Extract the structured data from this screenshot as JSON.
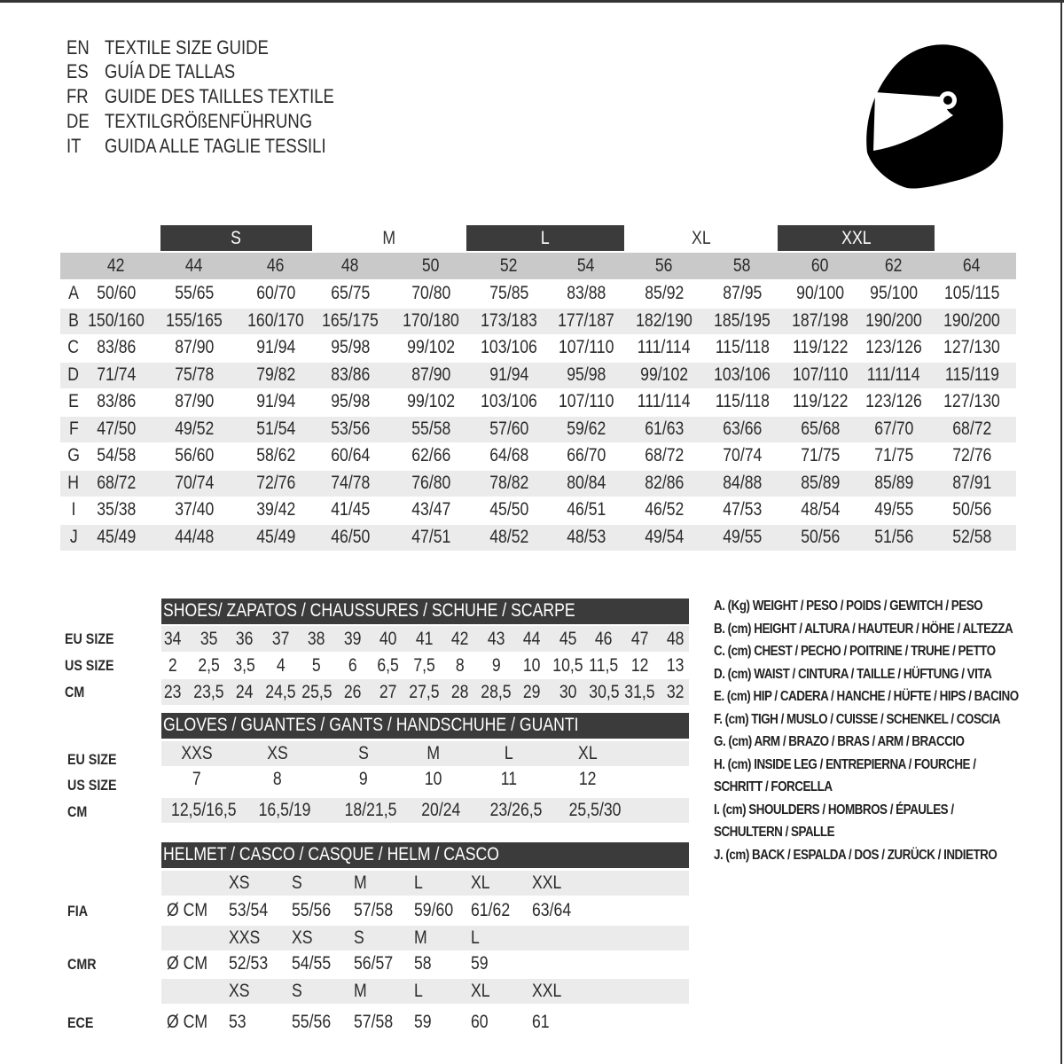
{
  "titles": [
    {
      "code": "EN",
      "text": "TEXTILE SIZE GUIDE"
    },
    {
      "code": "ES",
      "text": "GUÍA DE TALLAS"
    },
    {
      "code": "FR",
      "text": "GUIDE DES TAILLES TEXTILE"
    },
    {
      "code": "DE",
      "text": "TEXTILGRÖßENFÜHRUNG"
    },
    {
      "code": "IT",
      "text": "GUIDA ALLE TAGLIE TESSILI"
    }
  ],
  "logo_icon": "helmet-icon",
  "textile": {
    "size_groups": [
      {
        "label": "S",
        "highlighted": true
      },
      {
        "label": "M",
        "highlighted": false
      },
      {
        "label": "L",
        "highlighted": true
      },
      {
        "label": "XL",
        "highlighted": false
      },
      {
        "label": "XXL",
        "highlighted": true
      }
    ],
    "columns": [
      "42",
      "44",
      "46",
      "48",
      "50",
      "52",
      "54",
      "56",
      "58",
      "60",
      "62",
      "64"
    ],
    "rows": [
      {
        "key": "A",
        "values": [
          "50/60",
          "55/65",
          "60/70",
          "65/75",
          "70/80",
          "75/85",
          "83/88",
          "85/92",
          "87/95",
          "90/100",
          "95/100",
          "105/115"
        ]
      },
      {
        "key": "B",
        "values": [
          "150/160",
          "155/165",
          "160/170",
          "165/175",
          "170/180",
          "173/183",
          "177/187",
          "182/190",
          "185/195",
          "187/198",
          "190/200",
          "190/200"
        ]
      },
      {
        "key": "C",
        "values": [
          "83/86",
          "87/90",
          "91/94",
          "95/98",
          "99/102",
          "103/106",
          "107/110",
          "111/114",
          "115/118",
          "119/122",
          "123/126",
          "127/130"
        ]
      },
      {
        "key": "D",
        "values": [
          "71/74",
          "75/78",
          "79/82",
          "83/86",
          "87/90",
          "91/94",
          "95/98",
          "99/102",
          "103/106",
          "107/110",
          "111/114",
          "115/119"
        ]
      },
      {
        "key": "E",
        "values": [
          "83/86",
          "87/90",
          "91/94",
          "95/98",
          "99/102",
          "103/106",
          "107/110",
          "111/114",
          "115/118",
          "119/122",
          "123/126",
          "127/130"
        ]
      },
      {
        "key": "F",
        "values": [
          "47/50",
          "49/52",
          "51/54",
          "53/56",
          "55/58",
          "57/60",
          "59/62",
          "61/63",
          "63/66",
          "65/68",
          "67/70",
          "68/72"
        ]
      },
      {
        "key": "G",
        "values": [
          "54/58",
          "56/60",
          "58/62",
          "60/64",
          "62/66",
          "64/68",
          "66/70",
          "68/72",
          "70/74",
          "71/75",
          "71/75",
          "72/76"
        ]
      },
      {
        "key": "H",
        "values": [
          "68/72",
          "70/74",
          "72/76",
          "74/78",
          "76/80",
          "78/82",
          "80/84",
          "82/86",
          "84/88",
          "85/89",
          "85/89",
          "87/91"
        ]
      },
      {
        "key": "I",
        "values": [
          "35/38",
          "37/40",
          "39/42",
          "41/45",
          "43/47",
          "45/50",
          "46/51",
          "46/52",
          "47/53",
          "48/54",
          "49/55",
          "50/56"
        ]
      },
      {
        "key": "J",
        "values": [
          "45/49",
          "44/48",
          "45/49",
          "46/50",
          "47/51",
          "48/52",
          "48/53",
          "49/54",
          "49/55",
          "50/56",
          "51/56",
          "52/58"
        ]
      }
    ]
  },
  "shoes": {
    "title": "SHOES/ ZAPATOS / CHAUSSURES / SCHUHE / SCARPE",
    "rows": [
      {
        "label": "EU SIZE",
        "values": [
          "34",
          "35",
          "36",
          "37",
          "38",
          "39",
          "40",
          "41",
          "42",
          "43",
          "44",
          "45",
          "46",
          "47",
          "48"
        ]
      },
      {
        "label": "US SIZE",
        "values": [
          "2",
          "2,5",
          "3,5",
          "4",
          "5",
          "6",
          "6,5",
          "7,5",
          "8",
          "9",
          "10",
          "10,5",
          "11,5",
          "12",
          "13"
        ]
      },
      {
        "label": "CM",
        "values": [
          "23",
          "23,5",
          "24",
          "24,5",
          "25,5",
          "26",
          "27",
          "27,5",
          "28",
          "28,5",
          "29",
          "30",
          "30,5",
          "31,5",
          "32"
        ]
      }
    ]
  },
  "gloves": {
    "title": "GLOVES / GUANTES / GANTS / HANDSCHUHE / GUANTI",
    "rows": [
      {
        "label": "EU SIZE",
        "values": [
          "XXS",
          "XS",
          "S",
          "M",
          "L",
          "XL"
        ]
      },
      {
        "label": "US SIZE",
        "values": [
          "7",
          "8",
          "9",
          "10",
          "11",
          "12"
        ]
      },
      {
        "label": "CM",
        "values": [
          "12,5/16,5",
          "16,5/19",
          "18/21,5",
          "20/24",
          "23/26,5",
          "25,5/30"
        ]
      }
    ]
  },
  "helmet": {
    "title": "HELMET / CASCO / CASQUE / HELM / CASCO",
    "unit": "Ø CM",
    "standards": [
      {
        "label": "FIA",
        "sizes": [
          "XS",
          "S",
          "M",
          "L",
          "XL",
          "XXL"
        ],
        "values": [
          "53/54",
          "55/56",
          "57/58",
          "59/60",
          "61/62",
          "63/64"
        ]
      },
      {
        "label": "CMR",
        "sizes": [
          "XXS",
          "XS",
          "S",
          "M",
          "L"
        ],
        "values": [
          "52/53",
          "54/55",
          "56/57",
          "58",
          "59"
        ]
      },
      {
        "label": "ECE",
        "sizes": [
          "XS",
          "S",
          "M",
          "L",
          "XL",
          "XXL"
        ],
        "values": [
          "53",
          "55/56",
          "57/58",
          "59",
          "60",
          "61"
        ]
      }
    ]
  },
  "legend": [
    "A. (Kg) WEIGHT / PESO / POIDS / GEWITCH / PESO",
    "B. (cm) HEIGHT / ALTURA / HAUTEUR / HÖHE / ALTEZZA",
    "C. (cm) CHEST / PECHO / POITRINE / TRUHE / PETTO",
    "D. (cm) WAIST / CINTURA / TAILLE / HÜFTUNG / VITA",
    "E. (cm) HIP / CADERA / HANCHE / HÜFTE / HIPS /  BACINO",
    "F.  (cm) TIGH / MUSLO / CUISSE / SCHENKEL / COSCIA",
    "G. (cm) ARM  / BRAZO / BRAS / ARM / BRACCIO",
    "H. (cm) INSIDE LEG / ENTREPIERNA / FOURCHE /",
    "SCHRITT / FORCELLA",
    "I.  (cm) SHOULDERS / HOMBROS / ÉPAULES /",
    "SCHULTERN / SPALLE",
    "J. (cm) BACK / ESPALDA / DOS / ZURÜCK / INDIETRO"
  ]
}
